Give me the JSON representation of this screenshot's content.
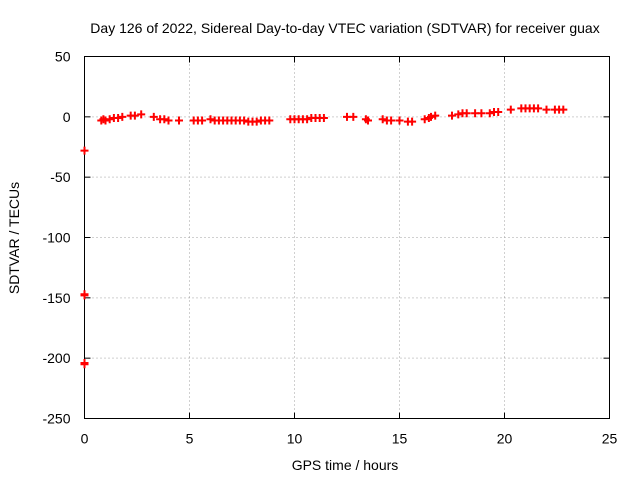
{
  "chart_data": {
    "type": "scatter",
    "title": "Day 126 of 2022, Sidereal Day-to-day VTEC variation (SDTVAR) for receiver guax",
    "xlabel": "GPS time / hours",
    "ylabel": "SDTVAR / TECUs",
    "xlim": [
      0,
      25
    ],
    "ylim": [
      -250,
      50
    ],
    "xticks": [
      0,
      5,
      10,
      15,
      20,
      25
    ],
    "yticks": [
      -250,
      -200,
      -150,
      -100,
      -50,
      0,
      50
    ],
    "grid": true,
    "marker": "+",
    "color": "#ff0000",
    "series": [
      {
        "name": "SDTVAR",
        "points": [
          [
            0.0,
            -28
          ],
          [
            0.0,
            -147
          ],
          [
            0.0,
            -148
          ],
          [
            0.0,
            -204
          ],
          [
            0.0,
            -205
          ],
          [
            0.8,
            -3
          ],
          [
            0.9,
            -2
          ],
          [
            1.0,
            -3
          ],
          [
            1.2,
            -2
          ],
          [
            1.4,
            -1
          ],
          [
            1.6,
            -1
          ],
          [
            1.8,
            0
          ],
          [
            2.2,
            1
          ],
          [
            2.4,
            1
          ],
          [
            2.7,
            2
          ],
          [
            3.3,
            0
          ],
          [
            3.6,
            -2
          ],
          [
            3.8,
            -2
          ],
          [
            4.0,
            -3
          ],
          [
            4.5,
            -3
          ],
          [
            5.2,
            -3
          ],
          [
            5.4,
            -3
          ],
          [
            5.6,
            -3
          ],
          [
            6.0,
            -2
          ],
          [
            6.2,
            -3
          ],
          [
            6.4,
            -3
          ],
          [
            6.6,
            -3
          ],
          [
            6.8,
            -3
          ],
          [
            7.0,
            -3
          ],
          [
            7.2,
            -3
          ],
          [
            7.4,
            -3
          ],
          [
            7.6,
            -3
          ],
          [
            7.8,
            -4
          ],
          [
            8.0,
            -4
          ],
          [
            8.2,
            -4
          ],
          [
            8.4,
            -3
          ],
          [
            8.6,
            -3
          ],
          [
            8.8,
            -3
          ],
          [
            9.8,
            -2
          ],
          [
            10.0,
            -2
          ],
          [
            10.2,
            -2
          ],
          [
            10.4,
            -2
          ],
          [
            10.6,
            -2
          ],
          [
            10.8,
            -1
          ],
          [
            11.0,
            -1
          ],
          [
            11.2,
            -1
          ],
          [
            11.4,
            -1
          ],
          [
            12.5,
            0
          ],
          [
            12.8,
            0
          ],
          [
            13.4,
            -2
          ],
          [
            13.5,
            -3
          ],
          [
            14.2,
            -2
          ],
          [
            14.4,
            -3
          ],
          [
            14.6,
            -3
          ],
          [
            15.0,
            -3
          ],
          [
            15.4,
            -4
          ],
          [
            15.6,
            -4
          ],
          [
            16.2,
            -2
          ],
          [
            16.4,
            -1
          ],
          [
            16.5,
            0
          ],
          [
            16.7,
            1
          ],
          [
            17.5,
            1
          ],
          [
            17.8,
            2
          ],
          [
            18.0,
            3
          ],
          [
            18.2,
            3
          ],
          [
            18.6,
            3
          ],
          [
            18.9,
            3
          ],
          [
            19.3,
            3
          ],
          [
            19.5,
            4
          ],
          [
            19.7,
            4
          ],
          [
            20.3,
            6
          ],
          [
            20.8,
            7
          ],
          [
            21.0,
            7
          ],
          [
            21.2,
            7
          ],
          [
            21.4,
            7
          ],
          [
            21.6,
            7
          ],
          [
            22.0,
            6
          ],
          [
            22.4,
            6
          ],
          [
            22.6,
            6
          ],
          [
            22.8,
            6
          ]
        ]
      }
    ]
  }
}
